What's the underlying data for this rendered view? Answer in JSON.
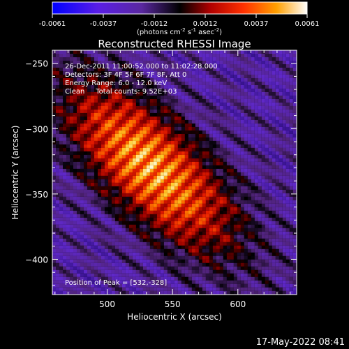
{
  "chart_data": {
    "type": "heatmap",
    "title": "Reconstructed RHESSI Image",
    "xlabel": "Heliocentric X (arcsec)",
    "ylabel": "Heliocentric Y (arcsec)",
    "xlim": [
      458,
      645
    ],
    "ylim": [
      -427,
      -240
    ],
    "xticks": [
      500,
      550,
      600
    ],
    "yticks": [
      -250,
      -300,
      -350,
      -400
    ],
    "colorbar": {
      "ticks": [
        "-0.0061",
        "-0.0037",
        "-0.0012",
        "0.0012",
        "0.0037",
        "0.0061"
      ],
      "unit_label": "(photons cm",
      "unit_sup1": "-2",
      "unit_mid": " s",
      "unit_sup2": "-1",
      "unit_mid2": " asec",
      "unit_sup3": "-2",
      "unit_end": ")",
      "range": [
        -0.0061,
        0.0061
      ]
    },
    "annotations": [
      "26-Dec-2011 11:00:52.000 to 11:02:28.000",
      "Detectors: 3F 4F 5F 6F 7F 8F, Att 0",
      "Energy Range: 6.0 - 12.0 keV",
      "Clean     Total counts: 9.52E+03"
    ],
    "peak_label": "Position of Peak = [532,-328]",
    "peak": [
      532,
      -328
    ],
    "grid": false
  },
  "footer": {
    "date": "17-May-2022 08:41"
  }
}
